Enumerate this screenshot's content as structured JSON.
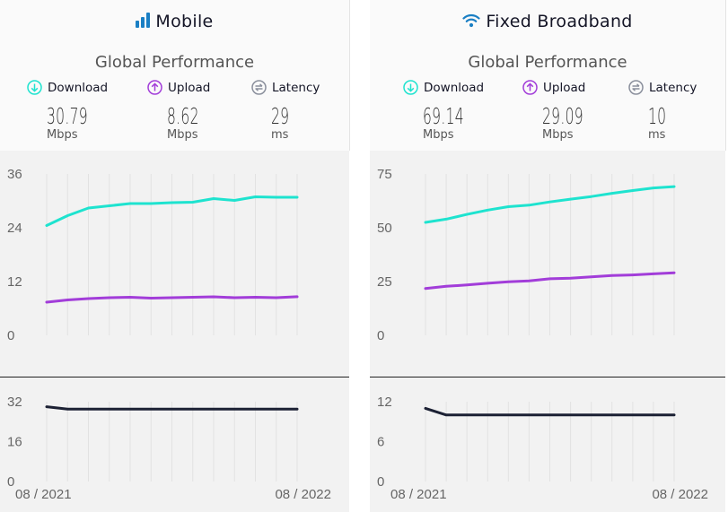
{
  "panels": [
    {
      "id": "mobile",
      "title": "Mobile",
      "title_icon": "signal-bars-icon",
      "subtitle": "Global Performance",
      "metrics": {
        "download": {
          "label": "Download",
          "value": "30.79",
          "unit": "Mbps",
          "icon": "download-arrow-icon"
        },
        "upload": {
          "label": "Upload",
          "value": "8.62",
          "unit": "Mbps",
          "icon": "upload-arrow-icon"
        },
        "latency": {
          "label": "Latency",
          "value": "29",
          "unit": "ms",
          "icon": "latency-icon"
        }
      }
    },
    {
      "id": "fixed",
      "title": "Fixed Broadband",
      "title_icon": "wifi-icon",
      "subtitle": "Global Performance",
      "metrics": {
        "download": {
          "label": "Download",
          "value": "69.14",
          "unit": "Mbps",
          "icon": "download-arrow-icon"
        },
        "upload": {
          "label": "Upload",
          "value": "29.09",
          "unit": "Mbps",
          "icon": "upload-arrow-icon"
        },
        "latency": {
          "label": "Latency",
          "value": "10",
          "unit": "ms",
          "icon": "latency-icon"
        }
      }
    }
  ],
  "colors": {
    "download": "#1ee3cf",
    "upload": "#a23dd9",
    "latency": "#1c2134",
    "accent": "#1a7fc4",
    "latency_icon": "#8a8f9c"
  },
  "chart_data": [
    {
      "type": "line",
      "panel": "mobile",
      "x": [
        "08 / 2021",
        "09 / 2021",
        "10 / 2021",
        "11 / 2021",
        "12 / 2021",
        "01 / 2022",
        "02 / 2022",
        "03 / 2022",
        "04 / 2022",
        "05 / 2022",
        "06 / 2022",
        "07 / 2022",
        "08 / 2022"
      ],
      "xticks": [
        "08 / 2021",
        "08 / 2022"
      ],
      "speed": {
        "ylim": [
          0,
          36
        ],
        "yticks": [
          0,
          12,
          24,
          36
        ],
        "series": [
          {
            "key": "download",
            "values": [
              24.5,
              26.7,
              28.4,
              28.9,
              29.4,
              29.4,
              29.6,
              29.7,
              30.5,
              30.1,
              30.9,
              30.8,
              30.79
            ]
          },
          {
            "key": "upload",
            "values": [
              7.4,
              7.9,
              8.2,
              8.4,
              8.5,
              8.3,
              8.4,
              8.5,
              8.6,
              8.4,
              8.5,
              8.4,
              8.62
            ]
          }
        ]
      },
      "latency": {
        "ylim": [
          0,
          32
        ],
        "yticks": [
          0,
          16,
          32
        ],
        "series": [
          {
            "key": "latency",
            "values": [
              30,
              29,
              29,
              29,
              29,
              29,
              29,
              29,
              29,
              29,
              29,
              29,
              29
            ]
          }
        ]
      }
    },
    {
      "type": "line",
      "panel": "fixed",
      "x": [
        "08 / 2021",
        "09 / 2021",
        "10 / 2021",
        "11 / 2021",
        "12 / 2021",
        "01 / 2022",
        "02 / 2022",
        "03 / 2022",
        "04 / 2022",
        "05 / 2022",
        "06 / 2022",
        "07 / 2022",
        "08 / 2022"
      ],
      "xticks": [
        "08 / 2021",
        "08 / 2022"
      ],
      "speed": {
        "ylim": [
          0,
          75
        ],
        "yticks": [
          0,
          25,
          50,
          75
        ],
        "series": [
          {
            "key": "download",
            "values": [
              52.5,
              54,
              56.2,
              58.2,
              59.8,
              60.5,
              62,
              63.3,
              64.5,
              66,
              67.3,
              68.5,
              69.14
            ]
          },
          {
            "key": "upload",
            "values": [
              21.8,
              22.8,
              23.4,
              24.2,
              24.9,
              25.3,
              26.3,
              26.6,
              27.2,
              27.8,
              28.1,
              28.6,
              29.09
            ]
          }
        ]
      },
      "latency": {
        "ylim": [
          0,
          12
        ],
        "yticks": [
          0,
          6,
          12
        ],
        "series": [
          {
            "key": "latency",
            "values": [
              11,
              10,
              10,
              10,
              10,
              10,
              10,
              10,
              10,
              10,
              10,
              10,
              10
            ]
          }
        ]
      }
    }
  ]
}
